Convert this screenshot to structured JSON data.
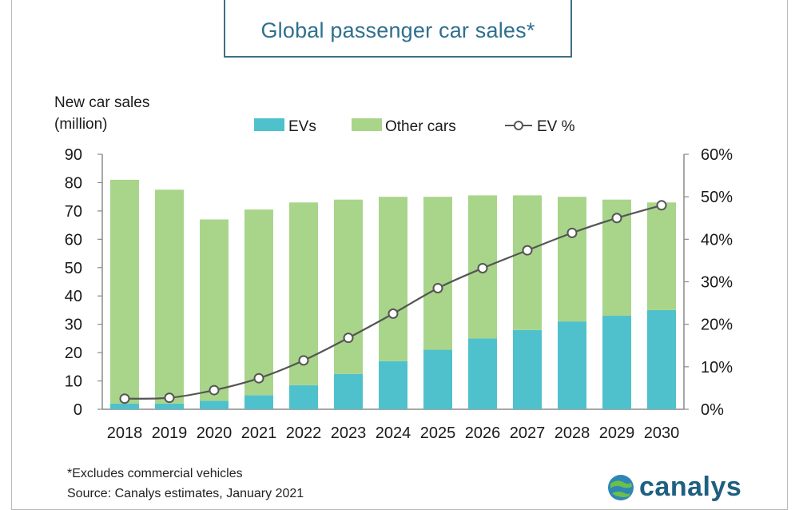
{
  "title": "Global passenger car sales*",
  "chart_data": {
    "type": "bar",
    "stacked": true,
    "categories": [
      "2018",
      "2019",
      "2020",
      "2021",
      "2022",
      "2023",
      "2024",
      "2025",
      "2026",
      "2027",
      "2028",
      "2029",
      "2030"
    ],
    "series": [
      {
        "name": "EVs",
        "color": "#4fc1cc",
        "values": [
          2,
          2,
          3,
          5,
          8.5,
          12.5,
          17,
          21,
          25,
          28,
          31,
          33,
          35
        ]
      },
      {
        "name": "Other cars",
        "color": "#a8d58a",
        "values": [
          79,
          75.5,
          64,
          65.5,
          64.5,
          61.5,
          58,
          54,
          50.5,
          47.5,
          44,
          41,
          38
        ]
      },
      {
        "name": "EV %",
        "type": "line",
        "axis": "right",
        "values": [
          2.5,
          2.7,
          4.5,
          7.3,
          11.5,
          16.8,
          22.5,
          28.5,
          33.2,
          37.4,
          41.5,
          45,
          48
        ]
      }
    ],
    "ylabel_lines": [
      "New car sales",
      "(million)"
    ],
    "ylim": [
      0,
      90
    ],
    "yticks": [
      "0",
      "10",
      "20",
      "30",
      "40",
      "50",
      "60",
      "70",
      "80",
      "90"
    ],
    "y2lim": [
      0,
      60
    ],
    "y2ticks": [
      "0%",
      "10%",
      "20%",
      "30%",
      "40%",
      "50%",
      "60%"
    ],
    "legend": [
      "EVs",
      "Other cars",
      "EV %"
    ],
    "legend_position": "top"
  },
  "footnotes": {
    "note": "*Excludes commercial vehicles",
    "source": "Source: Canalys estimates, January 2021"
  },
  "brand": {
    "name": "canalys"
  }
}
